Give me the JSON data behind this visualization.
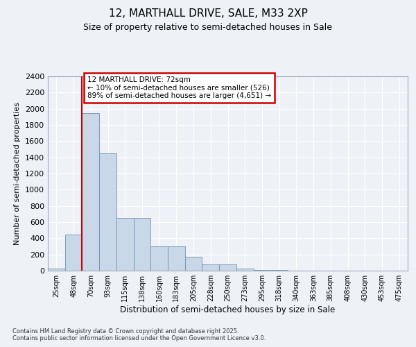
{
  "title": "12, MARTHALL DRIVE, SALE, M33 2XP",
  "subtitle": "Size of property relative to semi-detached houses in Sale",
  "xlabel": "Distribution of semi-detached houses by size in Sale",
  "ylabel": "Number of semi-detached properties",
  "annotation_title": "12 MARTHALL DRIVE: 72sqm",
  "annotation_line1": "← 10% of semi-detached houses are smaller (526)",
  "annotation_line2": "89% of semi-detached houses are larger (4,651) →",
  "categories": [
    "25sqm",
    "48sqm",
    "70sqm",
    "93sqm",
    "115sqm",
    "138sqm",
    "160sqm",
    "183sqm",
    "205sqm",
    "228sqm",
    "250sqm",
    "273sqm",
    "295sqm",
    "318sqm",
    "340sqm",
    "363sqm",
    "385sqm",
    "408sqm",
    "430sqm",
    "453sqm",
    "475sqm"
  ],
  "values": [
    30,
    450,
    1950,
    1450,
    650,
    650,
    300,
    300,
    175,
    80,
    80,
    30,
    10,
    5,
    0,
    0,
    0,
    0,
    0,
    0,
    0
  ],
  "bar_color": "#c8d8e8",
  "bar_edge_color": "#7090b0",
  "vline_color": "#cc0000",
  "vline_x_index": 2,
  "annotation_box_color": "#cc0000",
  "ylim": [
    0,
    2400
  ],
  "yticks": [
    0,
    200,
    400,
    600,
    800,
    1000,
    1200,
    1400,
    1600,
    1800,
    2000,
    2200,
    2400
  ],
  "footer": "Contains HM Land Registry data © Crown copyright and database right 2025.\nContains public sector information licensed under the Open Government Licence v3.0.",
  "bg_color": "#eef2f7",
  "grid_color": "#ffffff"
}
